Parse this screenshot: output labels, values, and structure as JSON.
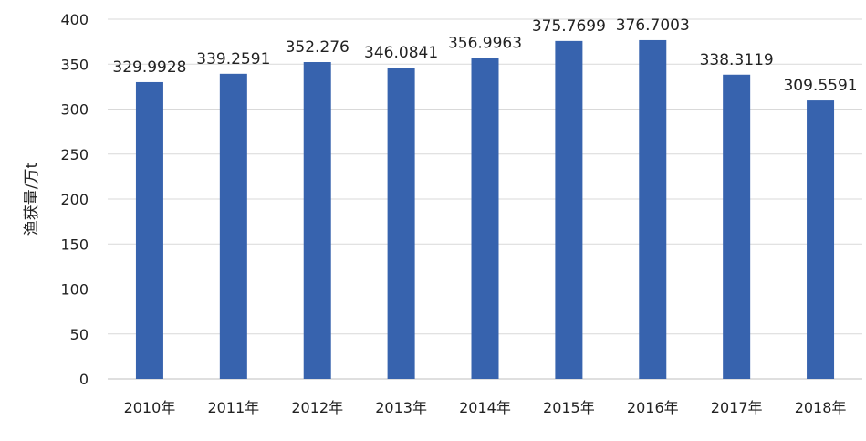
{
  "chart_data": {
    "type": "bar",
    "title": "",
    "xlabel": "",
    "ylabel": "渔获量/万t",
    "categories": [
      "2010年",
      "2011年",
      "2012年",
      "2013年",
      "2014年",
      "2015年",
      "2016年",
      "2017年",
      "2018年"
    ],
    "values": [
      329.9928,
      339.2591,
      352.276,
      346.0841,
      356.9963,
      375.7699,
      376.7003,
      338.3119,
      309.5591
    ],
    "data_labels": [
      "329.9928",
      "339.2591",
      "352.276",
      "346.0841",
      "356.9963",
      "375.7699",
      "376.7003",
      "338.3119",
      "309.5591"
    ],
    "ylim": [
      0,
      400
    ],
    "yticks": [
      0,
      50,
      100,
      150,
      200,
      250,
      300,
      350,
      400
    ],
    "ytick_labels": [
      "0",
      "50",
      "100",
      "150",
      "200",
      "250",
      "300",
      "350",
      "400"
    ],
    "grid": true,
    "legend": "none",
    "colors": {
      "bar": "#3763ae",
      "grid": "#d9d9d9"
    }
  }
}
